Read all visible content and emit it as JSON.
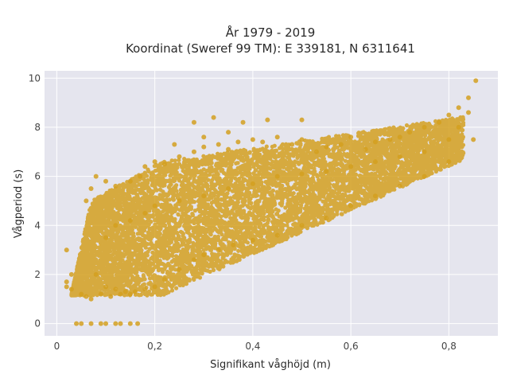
{
  "chart_data": {
    "type": "scatter",
    "title_lines": [
      "År 1979 - 2019",
      "Koordinat (Sweref 99 TM): E 339181, N 6311641"
    ],
    "xlabel": "Signifikant våghöjd (m)",
    "ylabel": "Vågperiod (s)",
    "xlim": [
      -0.025,
      0.9
    ],
    "ylim": [
      -0.5,
      10.3
    ],
    "xticks": [
      0,
      0.2,
      0.4,
      0.6,
      0.8
    ],
    "xtick_labels": [
      "0",
      "0,2",
      "0,4",
      "0,6",
      "0,8"
    ],
    "yticks": [
      0,
      2,
      4,
      6,
      8,
      10
    ],
    "ytick_labels": [
      "0",
      "2",
      "4",
      "6",
      "8",
      "10"
    ],
    "grid": true,
    "legend": "none",
    "colors": {
      "background": "#e5e5ee",
      "grid": "#ffffff",
      "marker": "#d4a020"
    },
    "series_points": [
      [
        0.04,
        0.0
      ],
      [
        0.05,
        0.0
      ],
      [
        0.07,
        0.0
      ],
      [
        0.09,
        0.0
      ],
      [
        0.1,
        0.0
      ],
      [
        0.12,
        0.0
      ],
      [
        0.13,
        0.0
      ],
      [
        0.15,
        0.0
      ],
      [
        0.165,
        0.0
      ],
      [
        0.02,
        3.0
      ],
      [
        0.02,
        1.5
      ],
      [
        0.02,
        1.7
      ],
      [
        0.03,
        1.4
      ],
      [
        0.03,
        2.0
      ],
      [
        0.06,
        5.0
      ],
      [
        0.07,
        5.5
      ],
      [
        0.08,
        6.0
      ],
      [
        0.1,
        5.8
      ],
      [
        0.12,
        5.6
      ],
      [
        0.15,
        5.8
      ],
      [
        0.17,
        6.0
      ],
      [
        0.18,
        6.4
      ],
      [
        0.2,
        6.6
      ],
      [
        0.22,
        6.5
      ],
      [
        0.25,
        6.8
      ],
      [
        0.28,
        7.0
      ],
      [
        0.3,
        7.2
      ],
      [
        0.33,
        7.3
      ],
      [
        0.35,
        7.1
      ],
      [
        0.37,
        7.4
      ],
      [
        0.4,
        7.5
      ],
      [
        0.42,
        7.4
      ],
      [
        0.45,
        7.6
      ],
      [
        0.48,
        7.3
      ],
      [
        0.5,
        7.5
      ],
      [
        0.53,
        7.0
      ],
      [
        0.55,
        7.2
      ],
      [
        0.58,
        7.3
      ],
      [
        0.6,
        7.6
      ],
      [
        0.63,
        7.1
      ],
      [
        0.65,
        7.4
      ],
      [
        0.68,
        7.5
      ],
      [
        0.7,
        7.6
      ],
      [
        0.72,
        7.8
      ],
      [
        0.75,
        8.0
      ],
      [
        0.78,
        8.2
      ],
      [
        0.8,
        8.5
      ],
      [
        0.82,
        8.8
      ],
      [
        0.84,
        9.2
      ],
      [
        0.855,
        9.9
      ],
      [
        0.24,
        7.3
      ],
      [
        0.32,
        8.4
      ],
      [
        0.28,
        8.2
      ],
      [
        0.38,
        8.2
      ],
      [
        0.43,
        8.3
      ],
      [
        0.5,
        8.3
      ],
      [
        0.35,
        7.8
      ],
      [
        0.3,
        7.6
      ],
      [
        0.1,
        3.5
      ],
      [
        0.12,
        4.0
      ],
      [
        0.15,
        4.2
      ],
      [
        0.18,
        4.5
      ],
      [
        0.2,
        4.8
      ],
      [
        0.25,
        5.0
      ],
      [
        0.3,
        5.2
      ],
      [
        0.35,
        5.5
      ],
      [
        0.4,
        5.7
      ],
      [
        0.45,
        6.0
      ],
      [
        0.5,
        6.1
      ],
      [
        0.55,
        6.2
      ],
      [
        0.6,
        6.4
      ],
      [
        0.65,
        6.6
      ],
      [
        0.7,
        6.8
      ],
      [
        0.75,
        7.0
      ],
      [
        0.8,
        7.5
      ],
      [
        0.82,
        8.0
      ],
      [
        0.84,
        8.6
      ],
      [
        0.08,
        2.0
      ],
      [
        0.1,
        1.5
      ],
      [
        0.12,
        1.4
      ],
      [
        0.14,
        1.3
      ],
      [
        0.16,
        1.3
      ],
      [
        0.18,
        1.4
      ],
      [
        0.2,
        1.5
      ],
      [
        0.22,
        1.8
      ],
      [
        0.25,
        2.2
      ],
      [
        0.28,
        2.6
      ],
      [
        0.3,
        2.8
      ],
      [
        0.33,
        3.0
      ],
      [
        0.36,
        3.2
      ],
      [
        0.4,
        3.4
      ],
      [
        0.45,
        3.6
      ],
      [
        0.5,
        4.0
      ],
      [
        0.55,
        4.3
      ],
      [
        0.6,
        4.8
      ],
      [
        0.65,
        5.2
      ],
      [
        0.7,
        5.6
      ],
      [
        0.75,
        6.0
      ],
      [
        0.8,
        6.6
      ],
      [
        0.85,
        7.5
      ],
      [
        0.05,
        1.2
      ],
      [
        0.06,
        1.1
      ],
      [
        0.07,
        1.0
      ],
      [
        0.09,
        1.2
      ],
      [
        0.11,
        1.1
      ],
      [
        0.13,
        1.2
      ],
      [
        0.15,
        1.2
      ]
    ]
  }
}
